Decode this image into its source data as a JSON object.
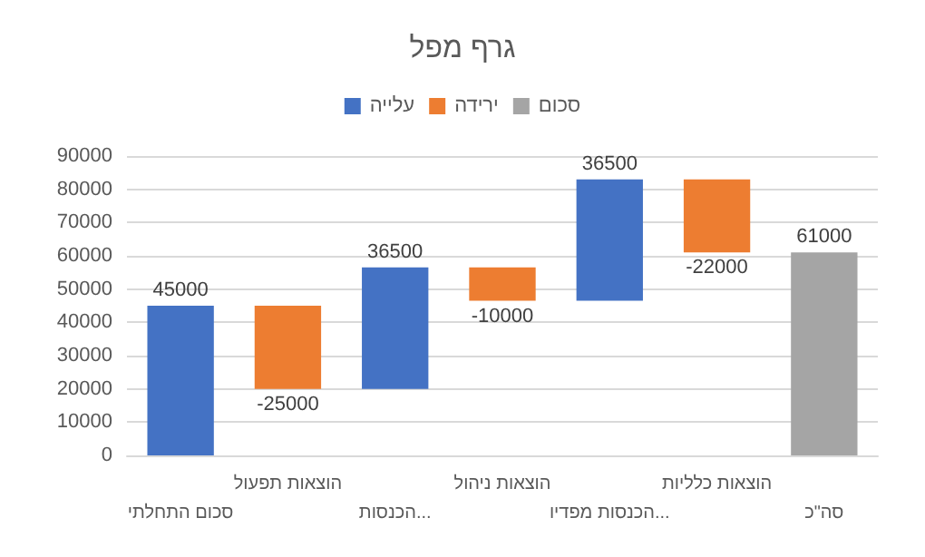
{
  "chart_data": {
    "type": "bar",
    "title": "גרף מפל",
    "categories": [
      "סכום התחלתי",
      "הוצאות תפעול",
      "הכנסות...",
      "הוצאות ניהול",
      "הכנסות מפדיו...",
      "הוצאות כלליות",
      "סה\"כ"
    ],
    "series": [
      {
        "name": "עלייה",
        "color": "#4472c4",
        "values": [
          45000,
          null,
          36500,
          null,
          36500,
          null,
          null
        ],
        "base": [
          0,
          null,
          20000,
          null,
          46500,
          null,
          null
        ]
      },
      {
        "name": "ירידה",
        "color": "#ed7d31",
        "values": [
          null,
          -25000,
          null,
          -10000,
          null,
          -22000,
          null
        ],
        "base": [
          null,
          45000,
          null,
          56500,
          null,
          83000,
          null
        ]
      },
      {
        "name": "סכום",
        "color": "#a5a5a5",
        "values": [
          null,
          null,
          null,
          null,
          null,
          null,
          61000
        ],
        "base": [
          null,
          null,
          null,
          null,
          null,
          null,
          0
        ]
      }
    ],
    "ylim": [
      0,
      90000
    ],
    "yticks": [
      0,
      10000,
      20000,
      30000,
      40000,
      50000,
      60000,
      70000,
      80000,
      90000
    ],
    "grid": "y",
    "legend": "top",
    "data_labels": true
  }
}
